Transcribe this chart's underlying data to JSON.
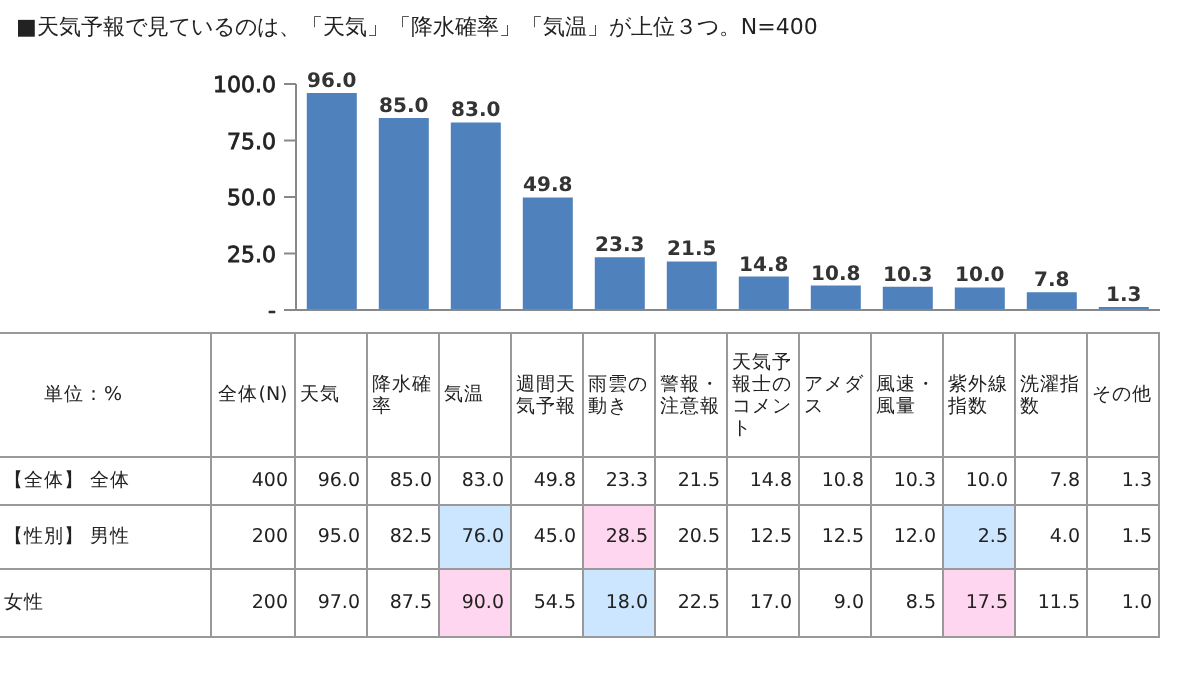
{
  "chart_data": [
    {
      "type": "bar",
      "title": "■天気予報で見ているのは、「天気」「降水確率」「気温」が上位３つ。N=400",
      "categories": [
        null,
        null,
        null,
        null,
        null,
        null,
        null,
        null,
        null,
        null,
        null,
        null
      ],
      "values": [
        96.0,
        85.0,
        83.0,
        49.8,
        23.3,
        21.5,
        14.8,
        10.8,
        10.3,
        10.0,
        7.8,
        1.3
      ],
      "value_labels": [
        "96.0",
        "85.0",
        "83.0",
        "49.8",
        "23.3",
        "21.5",
        "14.8",
        "10.8",
        "10.3",
        "10.0",
        "7.8",
        "1.3"
      ],
      "color": "#4f81bd",
      "ylim": [
        0,
        100
      ],
      "yticks": [
        {
          "value": 0,
          "label": "-"
        },
        {
          "value": 25,
          "label": "25.0"
        },
        {
          "value": 50,
          "label": "50.0"
        },
        {
          "value": 75,
          "label": "75.0"
        },
        {
          "value": 100,
          "label": "100.0"
        }
      ],
      "grid": false,
      "legend": false,
      "tick_labels": "y"
    },
    {
      "type": "heatmap",
      "annotations": [
        "単位：%"
      ],
      "categories": [
        "全体(N)",
        "天気",
        "降水確率",
        "気温",
        "週間天気予報",
        "雨雲の動き",
        "警報・注意報",
        "天気予報士のコメント",
        "アメダス",
        "風速・風量",
        "紫外線指数",
        "洗濯指数",
        "その他"
      ],
      "y_categories": [
        "【全体】 全体",
        "【性別】 男性",
        "女性"
      ],
      "cells": [
        [
          400,
          96.0,
          85.0,
          83.0,
          49.8,
          23.3,
          21.5,
          14.8,
          10.8,
          10.3,
          10.0,
          7.8,
          1.3
        ],
        [
          200,
          95.0,
          82.5,
          76.0,
          45.0,
          28.5,
          20.5,
          12.5,
          12.5,
          12.0,
          2.5,
          4.0,
          1.5
        ],
        [
          200,
          97.0,
          87.5,
          90.0,
          54.5,
          18.0,
          22.5,
          17.0,
          9.0,
          8.5,
          17.5,
          11.5,
          1.0
        ]
      ],
      "cell_labels": [
        [
          "400",
          "96.0",
          "85.0",
          "83.0",
          "49.8",
          "23.3",
          "21.5",
          "14.8",
          "10.8",
          "10.3",
          "10.0",
          "7.8",
          "1.3"
        ],
        [
          "200",
          "95.0",
          "82.5",
          "76.0",
          "45.0",
          "28.5",
          "20.5",
          "12.5",
          "12.5",
          "12.0",
          "2.5",
          "4.0",
          "1.5"
        ],
        [
          "200",
          "97.0",
          "87.5",
          "90.0",
          "54.5",
          "18.0",
          "22.5",
          "17.0",
          "9.0",
          "8.5",
          "17.5",
          "11.5",
          "1.0"
        ]
      ],
      "colors": [
        [
          null,
          null,
          null,
          null,
          null,
          null,
          null,
          null,
          null,
          null,
          null,
          null,
          null
        ],
        [
          null,
          null,
          null,
          "#cce6ff",
          null,
          "#ffd6ef",
          null,
          null,
          null,
          null,
          "#cce6ff",
          null,
          null
        ],
        [
          null,
          null,
          null,
          "#ffd6ef",
          null,
          "#cce6ff",
          null,
          null,
          null,
          null,
          "#ffd6ef",
          null,
          null
        ]
      ]
    }
  ]
}
